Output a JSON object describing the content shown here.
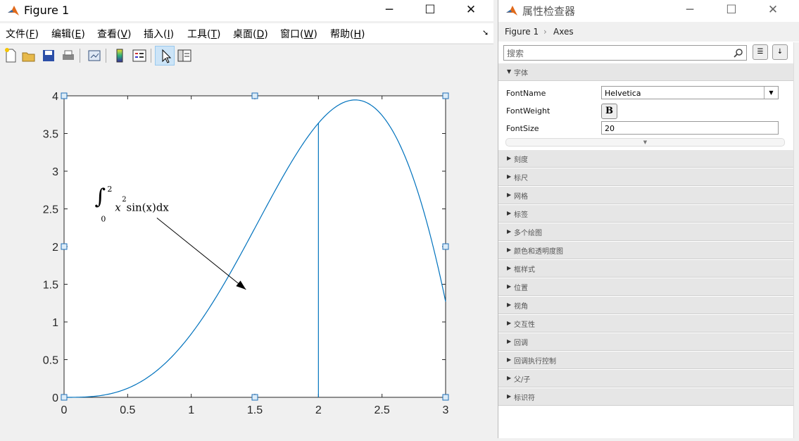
{
  "figure_window": {
    "title": "Figure 1",
    "menus": [
      {
        "label": "文件(",
        "key": "F",
        "tail": ")"
      },
      {
        "label": "编辑(",
        "key": "E",
        "tail": ")"
      },
      {
        "label": "查看(",
        "key": "V",
        "tail": ")"
      },
      {
        "label": "插入(",
        "key": "I",
        "tail": ")"
      },
      {
        "label": "工具(",
        "key": "T",
        "tail": ")"
      },
      {
        "label": "桌面(",
        "key": "D",
        "tail": ")"
      },
      {
        "label": "窗口(",
        "key": "W",
        "tail": ")"
      },
      {
        "label": "帮助(",
        "key": "H",
        "tail": ")"
      }
    ],
    "toolbar_icons": [
      "new-figure-icon",
      "open-file-icon",
      "save-icon",
      "print-icon",
      "link-plot-icon",
      "colorbar-icon",
      "legend-icon",
      "edit-plot-icon",
      "property-inspector-icon"
    ]
  },
  "chart_data": {
    "type": "line",
    "function": "x^2 sin(x)",
    "xlim": [
      0,
      3
    ],
    "ylim": [
      0,
      4
    ],
    "xticks": [
      "0",
      "0.5",
      "1",
      "1.5",
      "2",
      "2.5",
      "3"
    ],
    "yticks": [
      "0",
      "0.5",
      "1",
      "1.5",
      "2",
      "2.5",
      "3",
      "3.5",
      "4"
    ],
    "vertical_line_x": 2,
    "annotation": {
      "integral_lower": "0",
      "integral_upper": "2",
      "expr": "x",
      "exp": "2",
      "rest": " sin(x)dx"
    },
    "series_color": "#0072bd"
  },
  "inspector": {
    "title": "属性检查器",
    "crumb_figure": "Figure 1",
    "crumb_sep": "›",
    "crumb_axes": "Axes",
    "search_placeholder": "搜索",
    "font_section": "字体",
    "font_name_label": "FontName",
    "font_name_value": "Helvetica",
    "font_weight_label": "FontWeight",
    "font_weight_value": "B",
    "font_size_label": "FontSize",
    "font_size_value": "20",
    "sections": [
      "刻度",
      "标尺",
      "网格",
      "标签",
      "多个绘图",
      "颜色和透明度图",
      "框样式",
      "位置",
      "视角",
      "交互性",
      "回调",
      "回调执行控制",
      "父/子",
      "标识符"
    ]
  }
}
